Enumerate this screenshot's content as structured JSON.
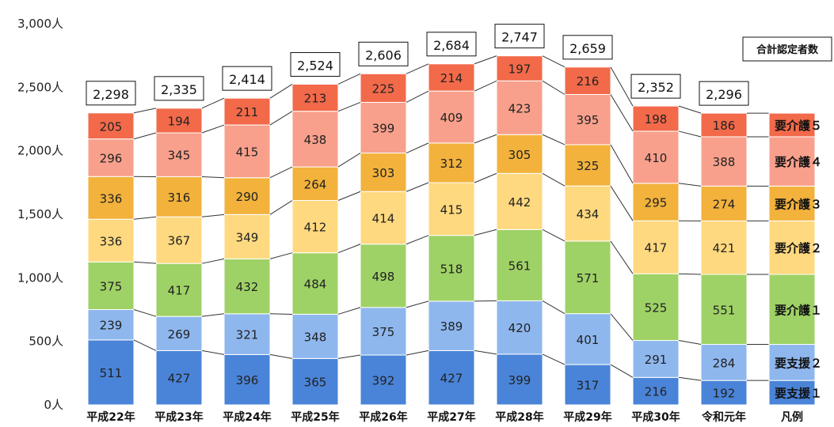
{
  "chart_data": {
    "type": "bar",
    "stacked": true,
    "categories": [
      "平成22年",
      "平成23年",
      "平成24年",
      "平成25年",
      "平成26年",
      "平成27年",
      "平成28年",
      "平成29年",
      "平成30年",
      "令和元年"
    ],
    "series": [
      {
        "name": "要支援１",
        "color": "#4a84d8",
        "values": [
          511,
          427,
          396,
          365,
          392,
          427,
          399,
          317,
          216,
          192
        ]
      },
      {
        "name": "要支援２",
        "color": "#8eb7ee",
        "values": [
          239,
          269,
          321,
          348,
          375,
          389,
          420,
          401,
          291,
          284
        ]
      },
      {
        "name": "要介護１",
        "color": "#9fd266",
        "values": [
          375,
          417,
          432,
          484,
          498,
          518,
          561,
          571,
          525,
          551
        ]
      },
      {
        "name": "要介護２",
        "color": "#ffd97f",
        "values": [
          336,
          367,
          349,
          412,
          414,
          415,
          442,
          434,
          417,
          421
        ]
      },
      {
        "name": "要介護３",
        "color": "#f2b23c",
        "values": [
          336,
          316,
          290,
          264,
          303,
          312,
          305,
          325,
          295,
          274
        ]
      },
      {
        "name": "要介護４",
        "color": "#f8a08c",
        "values": [
          296,
          345,
          415,
          438,
          399,
          409,
          423,
          395,
          410,
          388
        ]
      },
      {
        "name": "要介護５",
        "color": "#f26a4a",
        "values": [
          205,
          194,
          211,
          213,
          225,
          214,
          197,
          216,
          198,
          186
        ]
      }
    ],
    "totals": [
      "2,298",
      "2,335",
      "2,414",
      "2,524",
      "2,606",
      "2,684",
      "2,747",
      "2,659",
      "2,352",
      "2,296"
    ],
    "yticks": [
      "0人",
      "500人",
      "1,000人",
      "1,500人",
      "2,000人",
      "2,500人",
      "3,000人"
    ],
    "ylim": [
      0,
      3000
    ],
    "legend_category": "凡例",
    "legend_title": "合計認定者数",
    "grid": false
  }
}
